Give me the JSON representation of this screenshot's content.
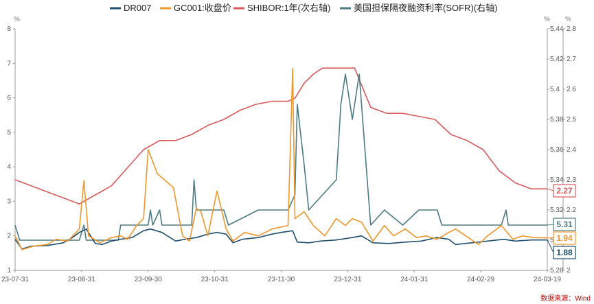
{
  "chart_data": {
    "type": "line",
    "title": "",
    "source": "数据来源：Wind",
    "legend": {
      "placement": "top",
      "items": [
        {
          "name": "DR007",
          "color": "#1f4e6e"
        },
        {
          "name": "GC001:收盘价",
          "color": "#f0962a"
        },
        {
          "name": "SHIBOR:1年(次右轴)",
          "color": "#d9595c"
        },
        {
          "name": "美国担保隔夜融资利率(SOFR)(右轴)",
          "color": "#4d7b82"
        }
      ]
    },
    "axes": {
      "left": {
        "unit": "%",
        "min": 1,
        "max": 8,
        "ticks": [
          "1",
          "2",
          "3",
          "4",
          "5",
          "6",
          "7",
          "8"
        ]
      },
      "right1": {
        "unit": "%",
        "min": 5.28,
        "max": 5.44,
        "ticks": [
          "5.28",
          "5.3",
          "5.32",
          "5.34",
          "5.36",
          "5.38",
          "5.4",
          "5.42",
          "5.44"
        ]
      },
      "right2": {
        "unit": "%",
        "min": 2,
        "max": 2.8,
        "ticks": [
          "2",
          "2.1",
          "2.2",
          "2.3",
          "2.4",
          "2.5",
          "2.6",
          "2.7",
          "2.8"
        ]
      },
      "x": {
        "start": "2023-07-31",
        "end": "2024-03-19",
        "tick_labels": [
          "23-07-31",
          "23-08-31",
          "23-09-30",
          "23-10-31",
          "23-11-30",
          "23-12-31",
          "24-01-31",
          "24-02-29",
          "24-03-19"
        ]
      }
    },
    "series": [
      {
        "name": "DR007",
        "axis": "left",
        "color": "#1f4e6e",
        "last_label": "1.88",
        "points": [
          [
            "2023-07-31",
            1.9
          ],
          [
            "2023-08-03",
            1.62
          ],
          [
            "2023-08-07",
            1.7
          ],
          [
            "2023-08-14",
            1.72
          ],
          [
            "2023-08-21",
            1.8
          ],
          [
            "2023-08-25",
            1.95
          ],
          [
            "2023-08-28",
            2.1
          ],
          [
            "2023-08-31",
            2.2
          ],
          [
            "2023-09-04",
            1.78
          ],
          [
            "2023-09-07",
            1.75
          ],
          [
            "2023-09-11",
            1.85
          ],
          [
            "2023-09-15",
            1.9
          ],
          [
            "2023-09-20",
            1.95
          ],
          [
            "2023-09-25",
            2.15
          ],
          [
            "2023-09-28",
            2.2
          ],
          [
            "2023-10-03",
            2.1
          ],
          [
            "2023-10-09",
            1.85
          ],
          [
            "2023-10-13",
            1.9
          ],
          [
            "2023-10-18",
            1.95
          ],
          [
            "2023-10-23",
            2.05
          ],
          [
            "2023-10-27",
            2.1
          ],
          [
            "2023-10-31",
            2.05
          ],
          [
            "2023-11-03",
            1.8
          ],
          [
            "2023-11-07",
            1.9
          ],
          [
            "2023-11-14",
            1.95
          ],
          [
            "2023-11-20",
            2.05
          ],
          [
            "2023-11-24",
            2.1
          ],
          [
            "2023-11-29",
            2.15
          ],
          [
            "2023-12-01",
            1.82
          ],
          [
            "2023-12-06",
            1.8
          ],
          [
            "2023-12-11",
            1.85
          ],
          [
            "2023-12-18",
            1.88
          ],
          [
            "2023-12-25",
            1.95
          ],
          [
            "2023-12-29",
            2.0
          ],
          [
            "2024-01-03",
            1.8
          ],
          [
            "2024-01-10",
            1.78
          ],
          [
            "2024-01-17",
            1.82
          ],
          [
            "2024-01-24",
            1.85
          ],
          [
            "2024-01-31",
            1.95
          ],
          [
            "2024-02-05",
            1.9
          ],
          [
            "2024-02-08",
            1.75
          ],
          [
            "2024-02-15",
            1.8
          ],
          [
            "2024-02-22",
            1.85
          ],
          [
            "2024-02-29",
            1.9
          ],
          [
            "2024-03-05",
            1.85
          ],
          [
            "2024-03-12",
            1.88
          ],
          [
            "2024-03-19",
            1.88
          ]
        ]
      },
      {
        "name": "GC001:收盘价",
        "axis": "left",
        "color": "#f0962a",
        "last_label": "1.94",
        "points": [
          [
            "2023-07-31",
            2.0
          ],
          [
            "2023-08-03",
            1.6
          ],
          [
            "2023-08-08",
            1.7
          ],
          [
            "2023-08-14",
            1.75
          ],
          [
            "2023-08-18",
            1.9
          ],
          [
            "2023-08-23",
            1.85
          ],
          [
            "2023-08-28",
            2.2
          ],
          [
            "2023-08-30",
            3.6
          ],
          [
            "2023-09-01",
            2.0
          ],
          [
            "2023-09-06",
            1.8
          ],
          [
            "2023-09-11",
            1.95
          ],
          [
            "2023-09-15",
            2.0
          ],
          [
            "2023-09-18",
            1.9
          ],
          [
            "2023-09-22",
            2.3
          ],
          [
            "2023-09-25",
            2.5
          ],
          [
            "2023-09-27",
            4.5
          ],
          [
            "2023-10-01",
            3.8
          ],
          [
            "2023-10-08",
            3.4
          ],
          [
            "2023-10-12",
            2.0
          ],
          [
            "2023-10-15",
            1.85
          ],
          [
            "2023-10-18",
            2.8
          ],
          [
            "2023-10-20",
            2.7
          ],
          [
            "2023-10-23",
            2.0
          ],
          [
            "2023-10-27",
            3.3
          ],
          [
            "2023-10-31",
            2.2
          ],
          [
            "2023-11-03",
            1.85
          ],
          [
            "2023-11-08",
            2.1
          ],
          [
            "2023-11-14",
            2.0
          ],
          [
            "2023-11-20",
            2.2
          ],
          [
            "2023-11-27",
            2.3
          ],
          [
            "2023-11-29",
            6.85
          ],
          [
            "2023-11-30",
            2.5
          ],
          [
            "2023-12-04",
            2.7
          ],
          [
            "2023-12-08",
            2.3
          ],
          [
            "2023-12-13",
            2.0
          ],
          [
            "2023-12-18",
            2.5
          ],
          [
            "2023-12-22",
            2.3
          ],
          [
            "2023-12-25",
            2.5
          ],
          [
            "2023-12-29",
            2.4
          ],
          [
            "2024-01-03",
            1.85
          ],
          [
            "2024-01-08",
            2.3
          ],
          [
            "2024-01-12",
            2.0
          ],
          [
            "2024-01-17",
            2.2
          ],
          [
            "2024-01-22",
            1.95
          ],
          [
            "2024-01-26",
            2.0
          ],
          [
            "2024-01-31",
            1.9
          ],
          [
            "2024-02-05",
            2.1
          ],
          [
            "2024-02-08",
            2.2
          ],
          [
            "2024-02-18",
            1.75
          ],
          [
            "2024-02-22",
            2.0
          ],
          [
            "2024-02-28",
            2.3
          ],
          [
            "2024-03-04",
            1.9
          ],
          [
            "2024-03-08",
            2.0
          ],
          [
            "2024-03-13",
            1.95
          ],
          [
            "2024-03-19",
            1.94
          ]
        ]
      },
      {
        "name": "SHIBOR:1年(次右轴)",
        "axis": "right2",
        "color": "#d9595c",
        "last_label": "2.27",
        "points": [
          [
            "2023-07-31",
            2.3
          ],
          [
            "2023-08-07",
            2.28
          ],
          [
            "2023-08-14",
            2.26
          ],
          [
            "2023-08-21",
            2.24
          ],
          [
            "2023-08-28",
            2.22
          ],
          [
            "2023-09-04",
            2.25
          ],
          [
            "2023-09-11",
            2.28
          ],
          [
            "2023-09-18",
            2.34
          ],
          [
            "2023-09-25",
            2.4
          ],
          [
            "2023-10-02",
            2.43
          ],
          [
            "2023-10-09",
            2.43
          ],
          [
            "2023-10-16",
            2.45
          ],
          [
            "2023-10-23",
            2.48
          ],
          [
            "2023-10-30",
            2.5
          ],
          [
            "2023-11-06",
            2.53
          ],
          [
            "2023-11-13",
            2.55
          ],
          [
            "2023-11-20",
            2.56
          ],
          [
            "2023-11-27",
            2.56
          ],
          [
            "2023-11-30",
            2.57
          ],
          [
            "2023-12-04",
            2.62
          ],
          [
            "2023-12-08",
            2.65
          ],
          [
            "2023-12-12",
            2.67
          ],
          [
            "2023-12-19",
            2.67
          ],
          [
            "2023-12-26",
            2.67
          ],
          [
            "2024-01-02",
            2.54
          ],
          [
            "2024-01-09",
            2.52
          ],
          [
            "2024-01-16",
            2.52
          ],
          [
            "2024-01-23",
            2.51
          ],
          [
            "2024-01-30",
            2.5
          ],
          [
            "2024-02-06",
            2.45
          ],
          [
            "2024-02-13",
            2.43
          ],
          [
            "2024-02-20",
            2.4
          ],
          [
            "2024-02-27",
            2.33
          ],
          [
            "2024-03-05",
            2.29
          ],
          [
            "2024-03-12",
            2.27
          ],
          [
            "2024-03-19",
            2.27
          ]
        ]
      },
      {
        "name": "美国担保隔夜融资利率(SOFR)(右轴)",
        "axis": "right1",
        "color": "#4d7b82",
        "last_label": "5.31",
        "points": [
          [
            "2023-07-31",
            5.31
          ],
          [
            "2023-08-02",
            5.3
          ],
          [
            "2023-08-28",
            5.3
          ],
          [
            "2023-08-30",
            5.31
          ],
          [
            "2023-08-31",
            5.3
          ],
          [
            "2023-09-14",
            5.3
          ],
          [
            "2023-09-15",
            5.31
          ],
          [
            "2023-09-27",
            5.31
          ],
          [
            "2023-09-28",
            5.32
          ],
          [
            "2023-09-29",
            5.31
          ],
          [
            "2023-10-02",
            5.32
          ],
          [
            "2023-10-03",
            5.31
          ],
          [
            "2023-10-16",
            5.31
          ],
          [
            "2023-10-17",
            5.34
          ],
          [
            "2023-10-18",
            5.32
          ],
          [
            "2023-10-20",
            5.32
          ],
          [
            "2023-10-30",
            5.32
          ],
          [
            "2023-11-01",
            5.31
          ],
          [
            "2023-11-14",
            5.32
          ],
          [
            "2023-11-27",
            5.32
          ],
          [
            "2023-11-30",
            5.33
          ],
          [
            "2023-12-01",
            5.39
          ],
          [
            "2023-12-04",
            5.35
          ],
          [
            "2023-12-06",
            5.32
          ],
          [
            "2023-12-18",
            5.34
          ],
          [
            "2023-12-20",
            5.39
          ],
          [
            "2023-12-22",
            5.41
          ],
          [
            "2023-12-25",
            5.38
          ],
          [
            "2023-12-28",
            5.41
          ],
          [
            "2024-01-02",
            5.31
          ],
          [
            "2024-01-08",
            5.32
          ],
          [
            "2024-01-16",
            5.31
          ],
          [
            "2024-01-23",
            5.32
          ],
          [
            "2024-01-31",
            5.32
          ],
          [
            "2024-02-02",
            5.31
          ],
          [
            "2024-02-28",
            5.31
          ],
          [
            "2024-03-01",
            5.32
          ],
          [
            "2024-03-02",
            5.31
          ],
          [
            "2024-03-19",
            5.31
          ]
        ]
      }
    ]
  }
}
